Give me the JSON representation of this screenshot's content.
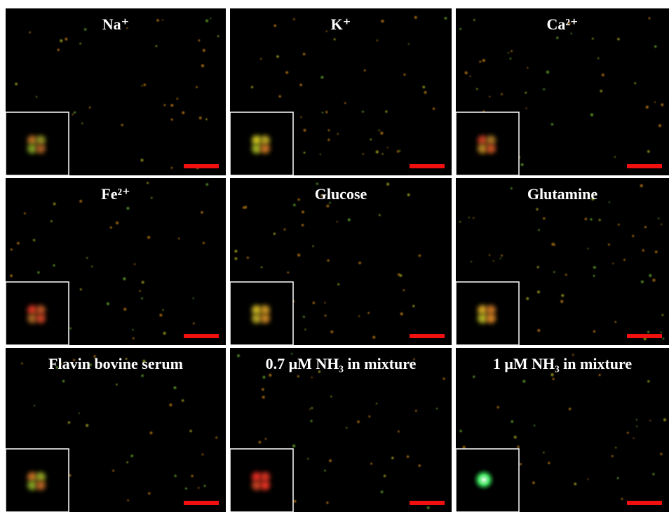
{
  "panels": [
    {
      "label": "Na⁺"
    },
    {
      "label": "K⁺"
    },
    {
      "label": "Ca²⁺"
    },
    {
      "label": "Fe²⁺"
    },
    {
      "label": "Glucose"
    },
    {
      "label": "Glutamine"
    },
    {
      "label": "Flavin bovine serum"
    },
    {
      "label": "0.7 μM NH₃ in mixture"
    },
    {
      "label": "1 μM NH₃ in mixture"
    }
  ]
}
